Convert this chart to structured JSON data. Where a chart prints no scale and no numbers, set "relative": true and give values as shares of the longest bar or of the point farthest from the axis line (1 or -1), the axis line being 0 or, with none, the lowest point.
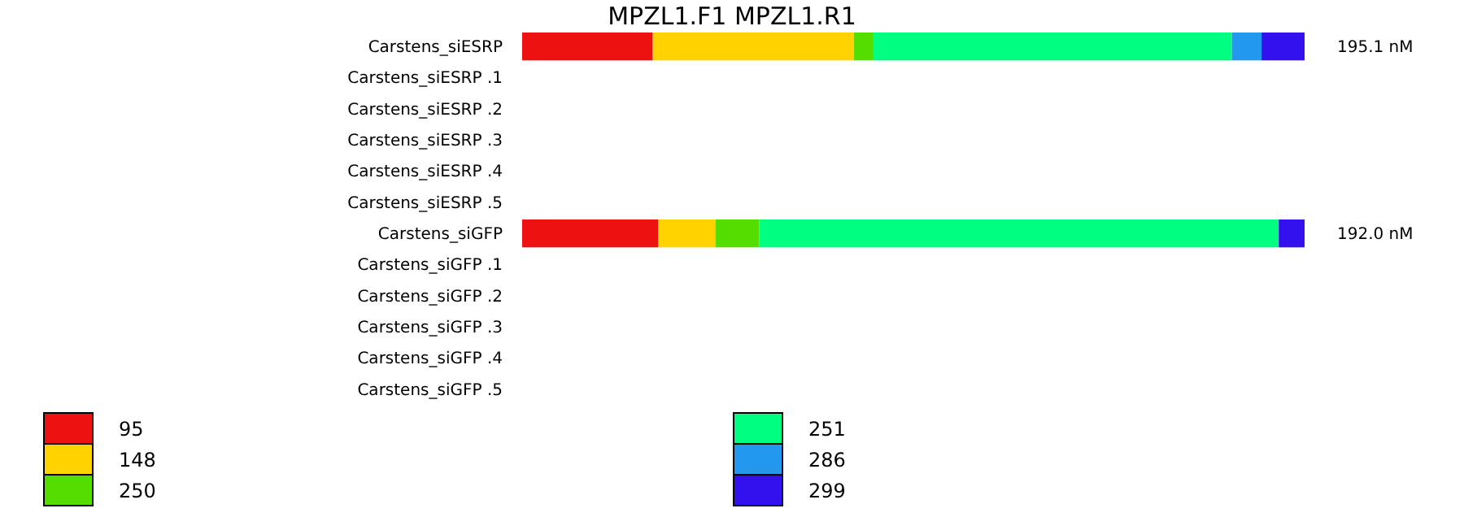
{
  "chart_data": {
    "type": "bar",
    "orientation": "horizontal",
    "stacked": true,
    "relative": true,
    "title": "MPZL1.F1  MPZL1.R1",
    "categories": [
      "Carstens_siESRP",
      "Carstens_siESRP .1",
      "Carstens_siESRP .2",
      "Carstens_siESRP .3",
      "Carstens_siESRP .4",
      "Carstens_siESRP .5",
      "Carstens_siGFP",
      "Carstens_siGFP .1",
      "Carstens_siGFP .2",
      "Carstens_siGFP .3",
      "Carstens_siGFP .4",
      "Carstens_siGFP .5"
    ],
    "series": [
      {
        "name": "95",
        "color": "#ee1111",
        "values": [
          0.167,
          null,
          null,
          null,
          null,
          null,
          0.174,
          null,
          null,
          null,
          null,
          null
        ]
      },
      {
        "name": "148",
        "color": "#ffd200",
        "values": [
          0.257,
          null,
          null,
          null,
          null,
          null,
          0.073,
          null,
          null,
          null,
          null,
          null
        ]
      },
      {
        "name": "250",
        "color": "#55dd00",
        "values": [
          0.025,
          null,
          null,
          null,
          null,
          null,
          0.056,
          null,
          null,
          null,
          null,
          null
        ]
      },
      {
        "name": "251",
        "color": "#00ff80",
        "values": [
          0.458,
          null,
          null,
          null,
          null,
          null,
          0.664,
          null,
          null,
          null,
          null,
          null
        ]
      },
      {
        "name": "286",
        "color": "#2299ee",
        "values": [
          0.038,
          null,
          null,
          null,
          null,
          null,
          null,
          null,
          null,
          null,
          null,
          null
        ]
      },
      {
        "name": "299",
        "color": "#3311ee",
        "values": [
          0.055,
          null,
          null,
          null,
          null,
          null,
          0.033,
          null,
          null,
          null,
          null,
          null
        ]
      }
    ],
    "annotations": [
      {
        "text": "195.1 nM",
        "x": 1,
        "y": "Carstens_siESRP"
      },
      {
        "text": "192.0 nM",
        "x": 1,
        "y": "Carstens_siGFP"
      }
    ],
    "legend": "bottom"
  }
}
